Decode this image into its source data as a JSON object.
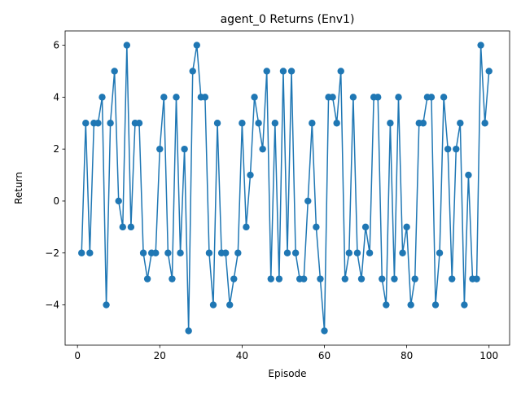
{
  "chart_data": {
    "type": "line",
    "title": "agent_0 Returns (Env1)",
    "xlabel": "Episode",
    "ylabel": "Return",
    "xlim": [
      -3,
      105
    ],
    "ylim": [
      -5.55,
      6.55
    ],
    "x_ticks": [
      0,
      20,
      40,
      60,
      80,
      100
    ],
    "y_ticks": [
      -4,
      -2,
      0,
      2,
      4,
      6
    ],
    "grid": false,
    "legend": "none",
    "series": [
      {
        "color": "#1f77b4",
        "marker": "circle",
        "x": [
          1,
          2,
          3,
          4,
          5,
          6,
          7,
          8,
          9,
          10,
          11,
          12,
          13,
          14,
          15,
          16,
          17,
          18,
          19,
          20,
          21,
          22,
          23,
          24,
          25,
          26,
          27,
          28,
          29,
          30,
          31,
          32,
          33,
          34,
          35,
          36,
          37,
          38,
          39,
          40,
          41,
          42,
          43,
          44,
          45,
          46,
          47,
          48,
          49,
          50,
          51,
          52,
          53,
          54,
          55,
          56,
          57,
          58,
          59,
          60,
          61,
          62,
          63,
          64,
          65,
          66,
          67,
          68,
          69,
          70,
          71,
          72,
          73,
          74,
          75,
          76,
          77,
          78,
          79,
          80,
          81,
          82,
          83,
          84,
          85,
          86,
          87,
          88,
          89,
          90,
          91,
          92,
          93,
          94,
          95,
          96,
          97,
          98,
          99,
          100
        ],
        "y": [
          -2,
          3,
          -2,
          3,
          3,
          4,
          -4,
          3,
          5,
          0,
          -1,
          6,
          -1,
          3,
          3,
          -2,
          -3,
          -2,
          -2,
          2,
          4,
          -2,
          -3,
          4,
          -2,
          2,
          -5,
          5,
          6,
          4,
          4,
          -2,
          -4,
          3,
          -2,
          -2,
          -4,
          -3,
          -2,
          3,
          -1,
          1,
          4,
          3,
          2,
          5,
          -3,
          3,
          -3,
          5,
          -2,
          5,
          -2,
          -3,
          -3,
          0,
          3,
          -1,
          -3,
          -5,
          4,
          4,
          3,
          5,
          -3,
          -2,
          4,
          -2,
          -3,
          -1,
          -2,
          4,
          4,
          -3,
          -4,
          3,
          -3,
          4,
          -2,
          -1,
          -4,
          -3,
          3,
          3,
          4,
          4,
          -4,
          -2,
          4,
          2,
          -3,
          2,
          3,
          -4,
          1,
          -3,
          -3,
          6,
          3,
          5
        ]
      }
    ]
  }
}
